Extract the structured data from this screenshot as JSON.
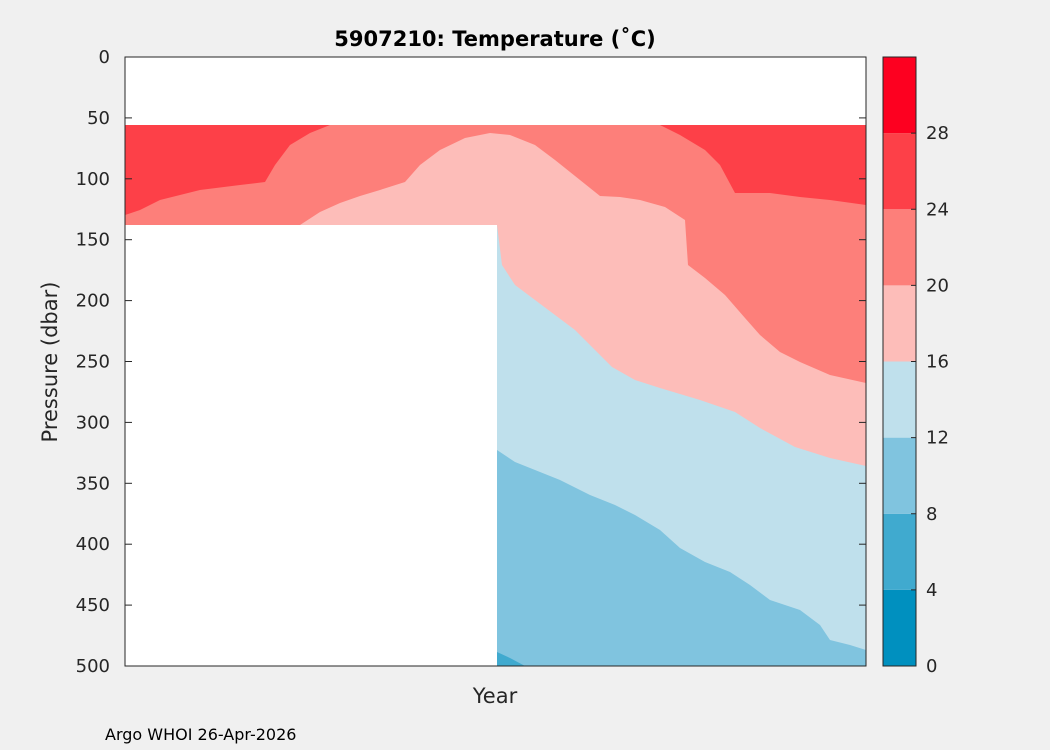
{
  "chart_data": {
    "type": "heatmap",
    "title": "5907210:  Temperature (˚C)",
    "xlabel": "Year",
    "ylabel": "Pressure (dbar)",
    "ylim": [
      0,
      500
    ],
    "y_reversed": true,
    "x_tick_labels": [],
    "y_ticks": [
      "0",
      "50",
      "100",
      "150",
      "200",
      "250",
      "300",
      "350",
      "400",
      "450",
      "500"
    ],
    "colorbar": {
      "range": [
        0,
        32
      ],
      "ticks": [
        "0",
        "4",
        "8",
        "12",
        "16",
        "20",
        "24",
        "28"
      ],
      "bands": [
        {
          "min": 0,
          "max": 4,
          "color": "#0090bf"
        },
        {
          "min": 4,
          "max": 8,
          "color": "#40aacf"
        },
        {
          "min": 8,
          "max": 12,
          "color": "#80c4df"
        },
        {
          "min": 12,
          "max": 16,
          "color": "#bfe0ec"
        },
        {
          "min": 16,
          "max": 20,
          "color": "#fdbdb9"
        },
        {
          "min": 20,
          "max": 24,
          "color": "#fd7f7a"
        },
        {
          "min": 24,
          "max": 28,
          "color": "#fd4048"
        },
        {
          "min": 28,
          "max": 32,
          "color": "#fd0020"
        }
      ]
    },
    "contours": [
      {
        "name": "isotherm-24",
        "color": "#fd4048",
        "note": "24-28 degC band, top layer (surface to ~130 dbar at edges)"
      },
      {
        "name": "isotherm-20",
        "color": "#fd7f7a",
        "note": "20-24 degC band"
      },
      {
        "name": "isotherm-16",
        "color": "#fdbdb9",
        "note": "16-20 degC band"
      },
      {
        "name": "isotherm-12",
        "color": "#bfe0ec",
        "note": "12-16 degC band"
      },
      {
        "name": "isotherm-8",
        "color": "#80c4df",
        "note": "8-12 degC band"
      },
      {
        "name": "isotherm-4",
        "color": "#40aacf",
        "note": "4-8 degC band near 500 dbar"
      }
    ]
  },
  "footer": {
    "credit": "Argo WHOI 26-Apr-2026"
  }
}
